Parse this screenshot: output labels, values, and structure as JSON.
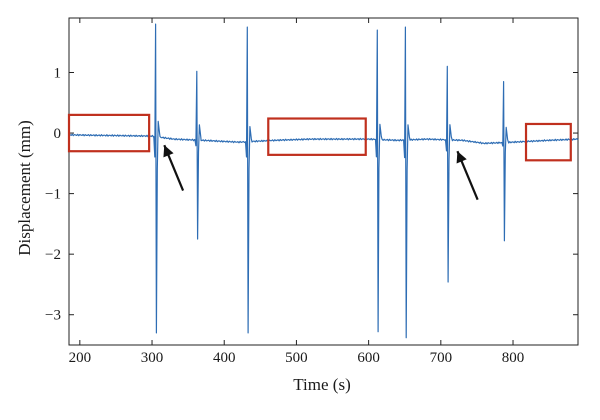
{
  "chart_data": {
    "type": "line",
    "title": "",
    "xlabel": "Time (s)",
    "ylabel": "Displacement (mm)",
    "xlim": [
      185,
      890
    ],
    "ylim": [
      -3.5,
      1.9
    ],
    "xticks": [
      200,
      300,
      400,
      500,
      600,
      700,
      800
    ],
    "xtick_labels": [
      "200",
      "300",
      "400",
      "500",
      "600",
      "700",
      "800"
    ],
    "yticks": [
      1,
      0,
      -1,
      -2,
      -3
    ],
    "ytick_labels": [
      "1",
      "0",
      "−1",
      "−2",
      "−3"
    ],
    "grid": false,
    "line_color": "#2e6db4",
    "baseline": [
      [
        185,
        -0.03
      ],
      [
        240,
        -0.04
      ],
      [
        300,
        -0.05
      ],
      [
        330,
        -0.1
      ],
      [
        370,
        -0.12
      ],
      [
        420,
        -0.15
      ],
      [
        470,
        -0.12
      ],
      [
        520,
        -0.1
      ],
      [
        600,
        -0.1
      ],
      [
        640,
        -0.12
      ],
      [
        680,
        -0.1
      ],
      [
        730,
        -0.12
      ],
      [
        760,
        -0.17
      ],
      [
        800,
        -0.15
      ],
      [
        850,
        -0.12
      ],
      [
        890,
        -0.1
      ]
    ],
    "spikes": [
      {
        "t": 305,
        "max": 1.8,
        "min": -3.3
      },
      {
        "t": 362,
        "max": 1.02,
        "min": -1.75
      },
      {
        "t": 432,
        "max": 1.75,
        "min": -3.3
      },
      {
        "t": 612,
        "max": 1.7,
        "min": -3.28
      },
      {
        "t": 651,
        "max": 1.75,
        "min": -3.38
      },
      {
        "t": 709,
        "max": 1.1,
        "min": -2.46
      },
      {
        "t": 787,
        "max": 0.85,
        "min": -1.78
      }
    ],
    "annotations": {
      "boxes": [
        {
          "x0": 185,
          "x1": 296,
          "y0": -0.3,
          "y1": 0.3,
          "color": "#c0301e"
        },
        {
          "x0": 461,
          "x1": 596,
          "y0": -0.36,
          "y1": 0.24,
          "color": "#c0301e"
        },
        {
          "x0": 818,
          "x1": 880,
          "y0": -0.45,
          "y1": 0.15,
          "color": "#c0301e"
        }
      ],
      "arrows": [
        {
          "from": [
            343,
            -0.95
          ],
          "to": [
            317,
            -0.2
          ]
        },
        {
          "from": [
            751,
            -1.1
          ],
          "to": [
            723,
            -0.3
          ]
        }
      ]
    }
  }
}
